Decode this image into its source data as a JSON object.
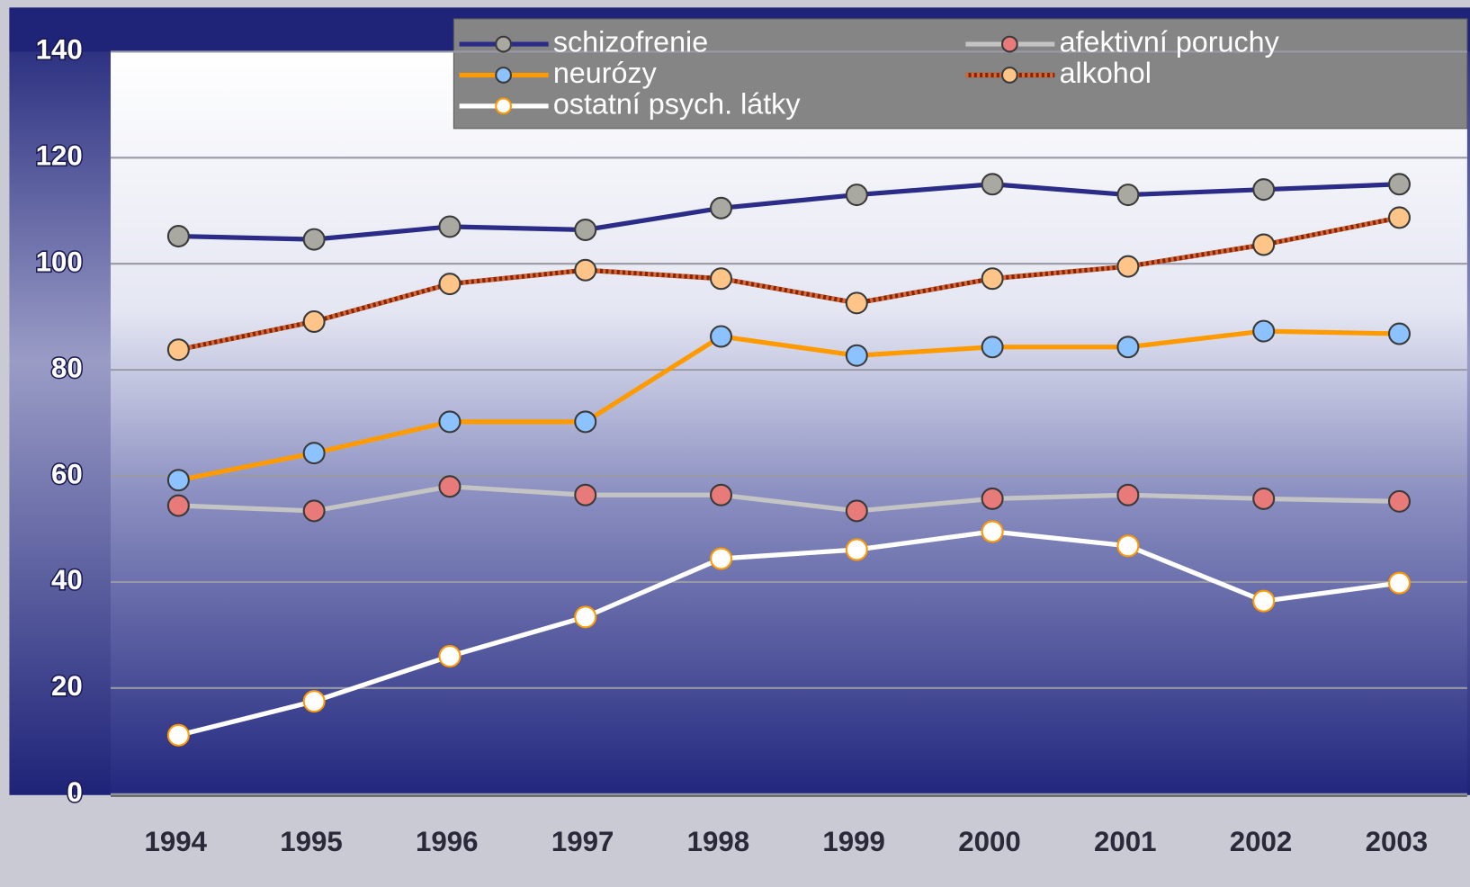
{
  "chart_data": {
    "type": "line",
    "categories": [
      "1994",
      "1995",
      "1996",
      "1997",
      "1998",
      "1999",
      "2000",
      "2001",
      "2002",
      "2003"
    ],
    "series": [
      {
        "name": "schizofrenie",
        "color": "#2b2b88",
        "marker_color": "#a9a9a2",
        "line_style": "solid",
        "values": [
          105.2,
          104.6,
          107,
          106.4,
          110.5,
          113,
          115,
          113,
          114,
          115
        ]
      },
      {
        "name": "afektivní  poruchy",
        "color": "#c4c4c4",
        "marker_color": "#e97a7a",
        "line_style": "solid",
        "values": [
          54.4,
          53.4,
          58,
          56.4,
          56.4,
          53.4,
          55.7,
          56.4,
          55.7,
          55.2
        ]
      },
      {
        "name": "neurózy",
        "color": "#ff9a00",
        "marker_color": "#8cc2ff",
        "line_style": "solid",
        "values": [
          59.2,
          64.3,
          70.2,
          70.2,
          86.3,
          82.7,
          84.3,
          84.3,
          87.3,
          86.8
        ]
      },
      {
        "name": "alkohol",
        "color": "#8b2200",
        "marker_color": "#ffc488",
        "line_style": "dotted",
        "values": [
          83.8,
          89.1,
          96.2,
          98.8,
          97.2,
          92.6,
          97.2,
          99.5,
          103.6,
          108.7
        ]
      },
      {
        "name": "ostatní psych. látky",
        "color": "#ffffff",
        "marker_color": "#ffffff",
        "line_style": "solid",
        "values": [
          11.1,
          17.5,
          26,
          33.4,
          44.4,
          46.1,
          49.5,
          46.8,
          36.4,
          39.8
        ]
      }
    ],
    "ylim": [
      0,
      140
    ],
    "yticks": [
      0,
      20,
      40,
      60,
      80,
      100,
      120,
      140
    ],
    "grid": true
  }
}
